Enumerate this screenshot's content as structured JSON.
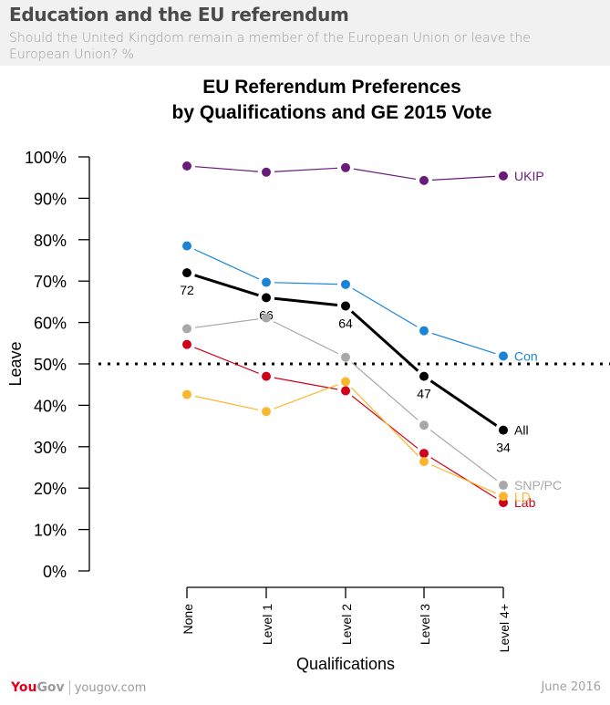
{
  "header": {
    "title": "Education and the EU referendum",
    "subtitle": "Should the United Kingdom remain a member of the European Union or leave the European Union? %"
  },
  "footer": {
    "logo_you": "You",
    "logo_gov": "Gov",
    "url": "yougov.com",
    "date": "June 2016"
  },
  "chart_data": {
    "type": "line",
    "title": "EU Referendum Preferences",
    "subtitle": "by Qualifications and GE 2015 Vote",
    "xlabel": "Qualifications",
    "ylabel": "Leave",
    "categories": [
      "None",
      "Level 1",
      "Level 2",
      "Level 3",
      "Level 4+"
    ],
    "ylim": [
      0,
      100
    ],
    "yticks": [
      "0%",
      "10%",
      "20%",
      "30%",
      "40%",
      "50%",
      "60%",
      "70%",
      "80%",
      "90%",
      "100%"
    ],
    "reference_line": {
      "value": 50,
      "style": "dotted"
    },
    "grid": false,
    "series": [
      {
        "name": "UKIP",
        "color": "#6a1b7a",
        "values": [
          97.8,
          96.3,
          97.4,
          94.3,
          95.4
        ],
        "show_values": false
      },
      {
        "name": "Con",
        "color": "#1a85d6",
        "values": [
          78.5,
          69.7,
          69.2,
          58.0,
          51.9
        ],
        "show_values": false
      },
      {
        "name": "All",
        "color": "#000000",
        "values": [
          72,
          66,
          64,
          47,
          34
        ],
        "show_values": true,
        "bold": true
      },
      {
        "name": "SNP/PC",
        "color": "#a8a8a8",
        "values": [
          58.5,
          61.1,
          51.6,
          35.2,
          20.7
        ],
        "show_values": false
      },
      {
        "name": "Lab",
        "color": "#d0021b",
        "values": [
          54.7,
          47.0,
          43.5,
          28.4,
          16.5
        ],
        "show_values": false
      },
      {
        "name": "LD",
        "color": "#fbb62f",
        "values": [
          42.6,
          38.5,
          45.7,
          26.4,
          18.0
        ],
        "show_values": false
      }
    ]
  }
}
